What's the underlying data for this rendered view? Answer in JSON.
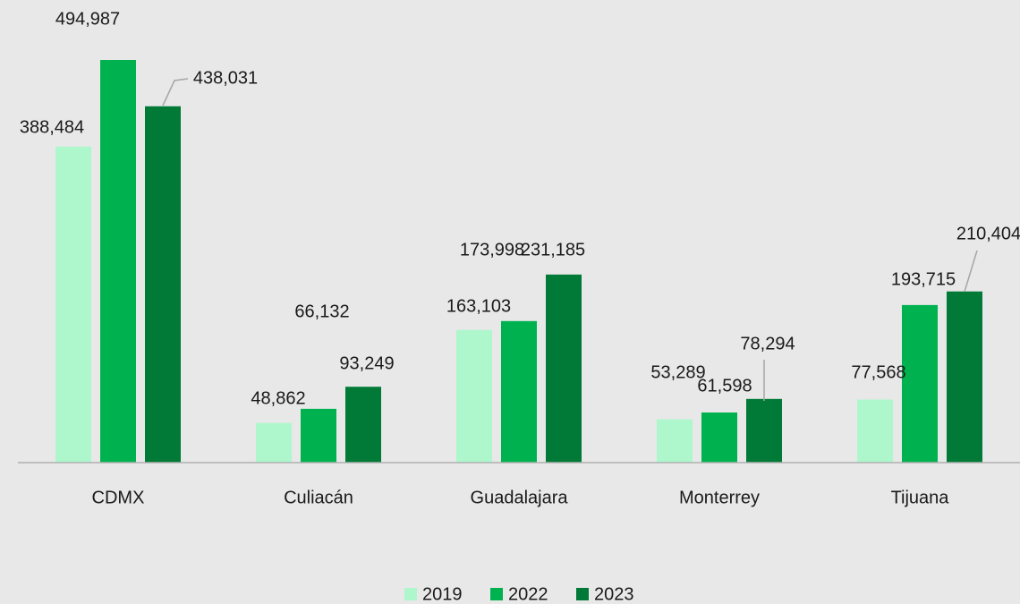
{
  "chart_data": {
    "type": "bar",
    "categories": [
      "CDMX",
      "Culiacán",
      "Guadalajara",
      "Monterrey",
      "Tijuana"
    ],
    "series": [
      {
        "name": "2019",
        "color": "#aef7cd",
        "values": [
          388484,
          48862,
          163103,
          53289,
          77568
        ],
        "value_labels": [
          "388,484",
          "48,862",
          "163,103",
          "53,289",
          "77,568"
        ]
      },
      {
        "name": "2022",
        "color": "#00b24f",
        "values": [
          494987,
          66132,
          173998,
          61598,
          193715
        ],
        "value_labels": [
          "494,987",
          "66,132",
          "173,998",
          "61,598",
          "193,715"
        ]
      },
      {
        "name": "2023",
        "color": "#007a36",
        "values": [
          438031,
          93249,
          231185,
          78294,
          210404
        ],
        "value_labels": [
          "438,031",
          "93,249",
          "231,185",
          "78,294",
          "210,404"
        ]
      }
    ],
    "legend": "bottom"
  }
}
